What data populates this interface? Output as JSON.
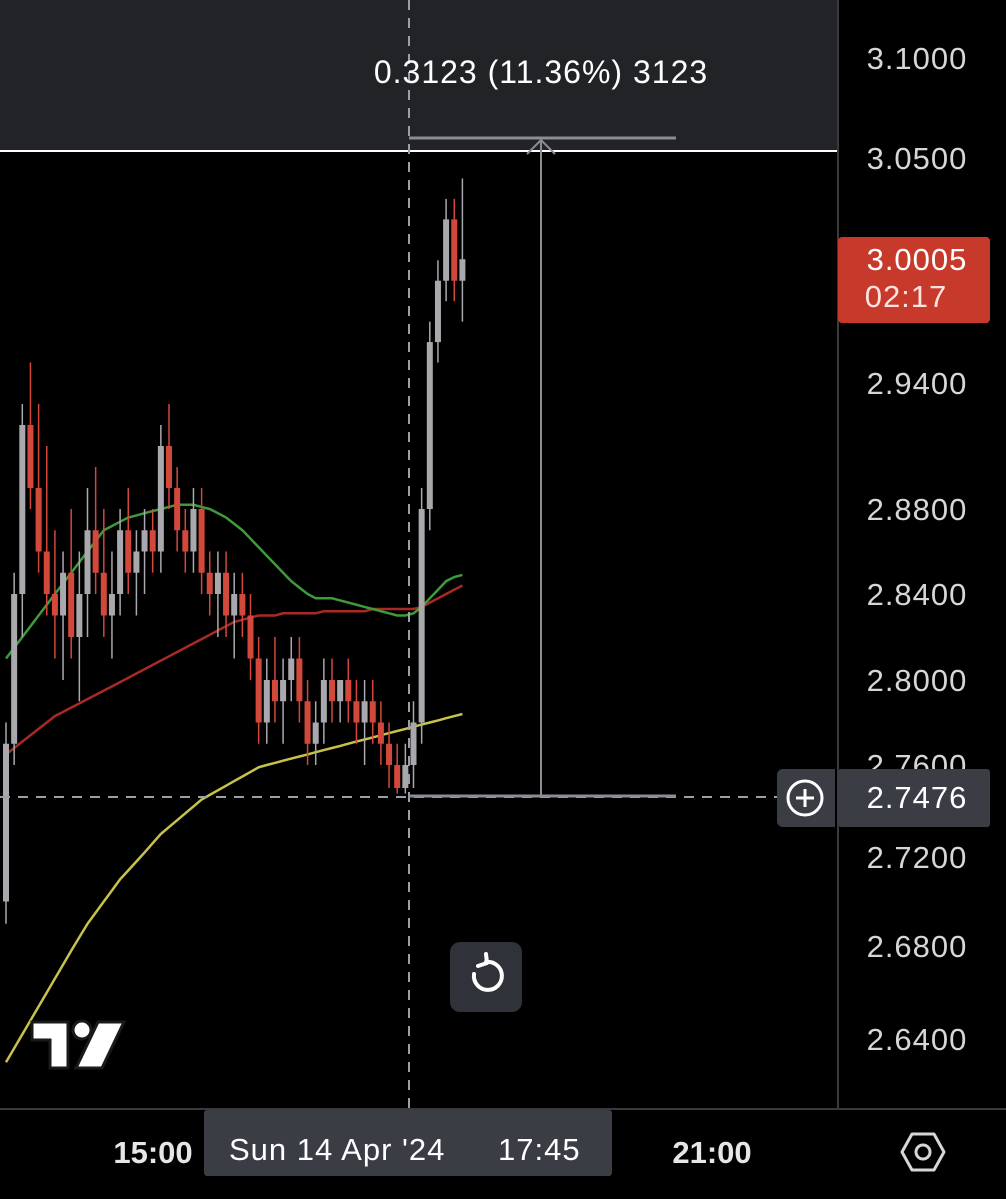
{
  "chart_data": {
    "type": "candlestick",
    "y_axis": {
      "ticks": [
        "3.1000",
        "3.0500",
        "2.9400",
        "2.8800",
        "2.8400",
        "2.8000",
        "2.7600",
        "2.7200",
        "2.6800",
        "2.6400"
      ],
      "tick_values": [
        3.1,
        3.05,
        2.94,
        2.88,
        2.84,
        2.8,
        2.76,
        2.72,
        2.68,
        2.64
      ]
    },
    "x_axis": {
      "ticks": [
        "15:00",
        "21:00"
      ],
      "crosshair_date": "Sun 14 Apr '24",
      "crosshair_time": "17:45"
    },
    "current_price": {
      "value": "3.0005",
      "countdown": "02:17",
      "color": "#c0392b"
    },
    "crosshair_price": "2.7476",
    "measure_label": "0.3123 (11.36%) 3123",
    "measure_range": {
      "from": 2.7476,
      "to": 3.0599
    },
    "horizontal_line": 3.048,
    "colors": {
      "up": "#a9a9ad",
      "down": "#d2493c",
      "ma_fast": "#3f9b3a",
      "ma_mid": "#a82a25",
      "ma_slow": "#c7c24a"
    },
    "candles": [
      [
        2.7,
        2.78,
        2.69,
        2.77
      ],
      [
        2.77,
        2.85,
        2.76,
        2.84
      ],
      [
        2.84,
        2.93,
        2.82,
        2.92
      ],
      [
        2.92,
        2.95,
        2.88,
        2.89
      ],
      [
        2.89,
        2.93,
        2.85,
        2.86
      ],
      [
        2.86,
        2.91,
        2.83,
        2.84
      ],
      [
        2.84,
        2.87,
        2.81,
        2.83
      ],
      [
        2.83,
        2.86,
        2.8,
        2.85
      ],
      [
        2.85,
        2.88,
        2.81,
        2.82
      ],
      [
        2.82,
        2.86,
        2.79,
        2.84
      ],
      [
        2.84,
        2.89,
        2.82,
        2.87
      ],
      [
        2.87,
        2.9,
        2.84,
        2.85
      ],
      [
        2.85,
        2.88,
        2.82,
        2.83
      ],
      [
        2.83,
        2.86,
        2.81,
        2.84
      ],
      [
        2.84,
        2.88,
        2.83,
        2.87
      ],
      [
        2.87,
        2.89,
        2.84,
        2.85
      ],
      [
        2.85,
        2.87,
        2.83,
        2.86
      ],
      [
        2.86,
        2.88,
        2.84,
        2.87
      ],
      [
        2.87,
        2.88,
        2.85,
        2.86
      ],
      [
        2.86,
        2.92,
        2.85,
        2.91
      ],
      [
        2.91,
        2.93,
        2.88,
        2.89
      ],
      [
        2.89,
        2.9,
        2.86,
        2.87
      ],
      [
        2.87,
        2.88,
        2.85,
        2.86
      ],
      [
        2.86,
        2.89,
        2.85,
        2.88
      ],
      [
        2.88,
        2.89,
        2.84,
        2.85
      ],
      [
        2.85,
        2.86,
        2.83,
        2.84
      ],
      [
        2.84,
        2.86,
        2.82,
        2.85
      ],
      [
        2.85,
        2.86,
        2.82,
        2.83
      ],
      [
        2.83,
        2.85,
        2.81,
        2.84
      ],
      [
        2.84,
        2.85,
        2.82,
        2.83
      ],
      [
        2.83,
        2.84,
        2.8,
        2.81
      ],
      [
        2.81,
        2.82,
        2.77,
        2.78
      ],
      [
        2.78,
        2.81,
        2.77,
        2.8
      ],
      [
        2.8,
        2.82,
        2.78,
        2.79
      ],
      [
        2.79,
        2.81,
        2.77,
        2.8
      ],
      [
        2.8,
        2.82,
        2.79,
        2.81
      ],
      [
        2.81,
        2.82,
        2.78,
        2.79
      ],
      [
        2.79,
        2.8,
        2.76,
        2.77
      ],
      [
        2.77,
        2.79,
        2.76,
        2.78
      ],
      [
        2.78,
        2.81,
        2.77,
        2.8
      ],
      [
        2.8,
        2.81,
        2.78,
        2.79
      ],
      [
        2.79,
        2.8,
        2.78,
        2.8
      ],
      [
        2.8,
        2.81,
        2.78,
        2.79
      ],
      [
        2.79,
        2.8,
        2.77,
        2.78
      ],
      [
        2.78,
        2.8,
        2.76,
        2.79
      ],
      [
        2.79,
        2.8,
        2.77,
        2.78
      ],
      [
        2.78,
        2.79,
        2.76,
        2.77
      ],
      [
        2.77,
        2.78,
        2.75,
        2.76
      ],
      [
        2.76,
        2.77,
        2.7476,
        2.75
      ],
      [
        2.75,
        2.77,
        2.7476,
        2.76
      ],
      [
        2.76,
        2.79,
        2.75,
        2.78
      ],
      [
        2.78,
        2.89,
        2.77,
        2.88
      ],
      [
        2.88,
        2.97,
        2.87,
        2.96
      ],
      [
        2.96,
        3.0,
        2.95,
        2.99
      ],
      [
        2.99,
        3.03,
        2.98,
        3.02
      ],
      [
        3.02,
        3.03,
        2.98,
        2.99
      ],
      [
        2.99,
        3.04,
        2.97,
        3.0005
      ]
    ],
    "ma_fast": [
      2.81,
      2.815,
      2.82,
      2.825,
      2.83,
      2.835,
      2.84,
      2.845,
      2.85,
      2.855,
      2.86,
      2.865,
      2.87,
      2.872,
      2.874,
      2.876,
      2.877,
      2.878,
      2.879,
      2.88,
      2.881,
      2.882,
      2.882,
      2.882,
      2.881,
      2.88,
      2.878,
      2.876,
      2.873,
      2.87,
      2.866,
      2.862,
      2.858,
      2.854,
      2.85,
      2.846,
      2.843,
      2.84,
      2.838,
      2.838,
      2.838,
      2.837,
      2.836,
      2.835,
      2.834,
      2.833,
      2.832,
      2.831,
      2.83,
      2.83,
      2.831,
      2.834,
      2.838,
      2.842,
      2.846,
      2.848,
      2.849
    ],
    "ma_mid": [
      2.765,
      2.768,
      2.771,
      2.774,
      2.777,
      2.78,
      2.783,
      2.785,
      2.787,
      2.789,
      2.791,
      2.793,
      2.795,
      2.797,
      2.799,
      2.801,
      2.803,
      2.805,
      2.807,
      2.809,
      2.811,
      2.813,
      2.815,
      2.817,
      2.819,
      2.821,
      2.823,
      2.825,
      2.827,
      2.828,
      2.829,
      2.83,
      2.83,
      2.83,
      2.831,
      2.831,
      2.831,
      2.831,
      2.831,
      2.832,
      2.832,
      2.832,
      2.832,
      2.832,
      2.832,
      2.833,
      2.833,
      2.833,
      2.833,
      2.833,
      2.833,
      2.834,
      2.836,
      2.838,
      2.84,
      2.842,
      2.844
    ],
    "ma_slow": [
      2.63,
      2.636,
      2.642,
      2.648,
      2.654,
      2.66,
      2.666,
      2.672,
      2.678,
      2.684,
      2.69,
      2.695,
      2.7,
      2.705,
      2.71,
      2.714,
      2.718,
      2.722,
      2.726,
      2.73,
      2.733,
      2.736,
      2.739,
      2.742,
      2.745,
      2.747,
      2.749,
      2.751,
      2.753,
      2.755,
      2.757,
      2.759,
      2.76,
      2.761,
      2.762,
      2.763,
      2.764,
      2.765,
      2.766,
      2.767,
      2.768,
      2.769,
      2.77,
      2.771,
      2.772,
      2.773,
      2.774,
      2.775,
      2.776,
      2.777,
      2.778,
      2.779,
      2.78,
      2.781,
      2.782,
      2.783,
      2.784
    ]
  }
}
